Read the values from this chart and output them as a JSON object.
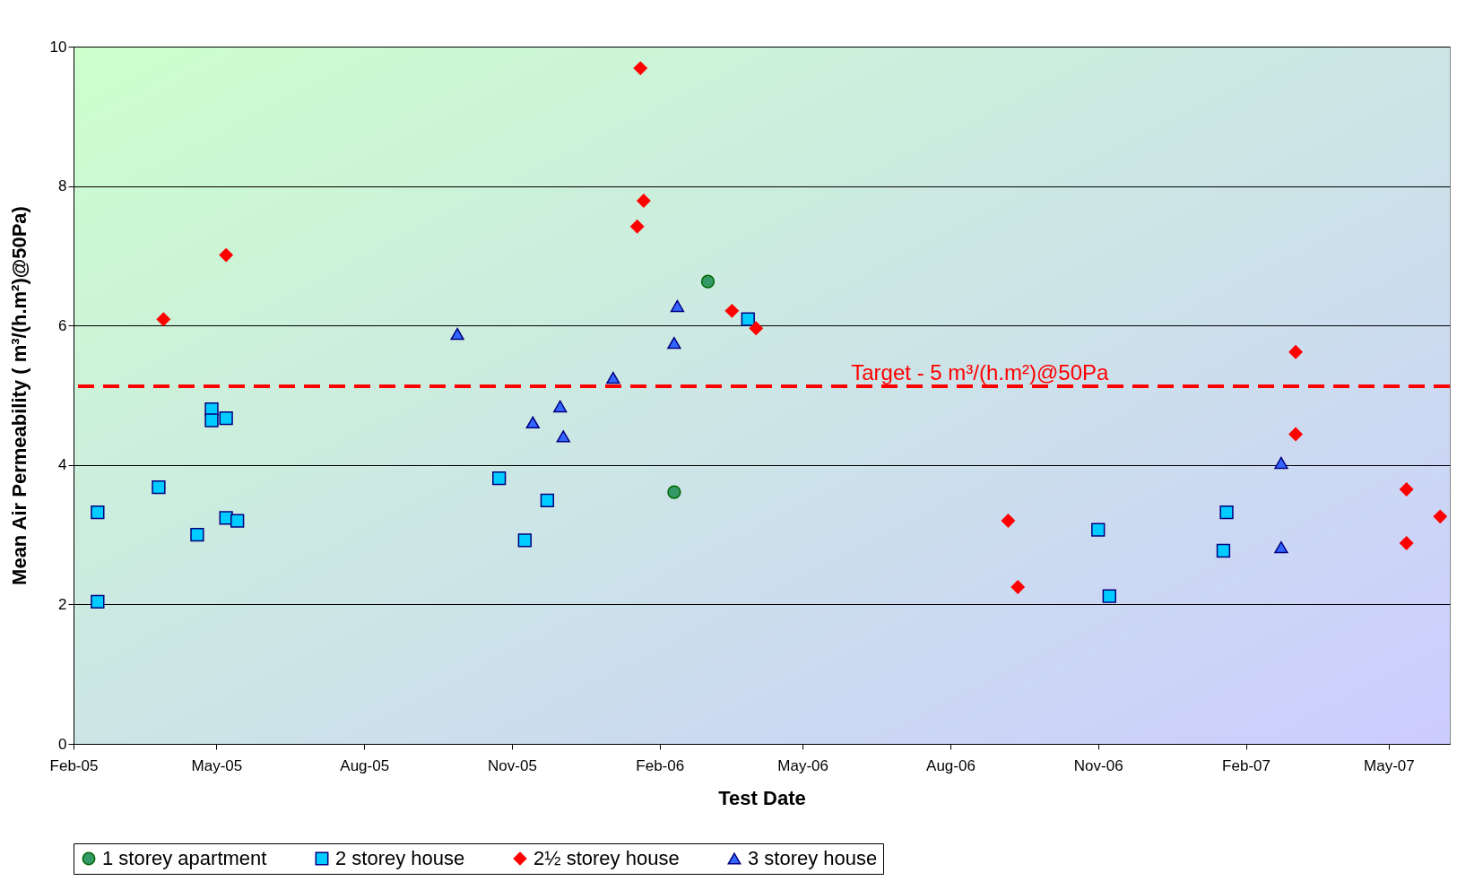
{
  "chart_data": {
    "type": "scatter",
    "xlabel": "Test Date",
    "ylabel": "Mean Air Permeability ( m³/(h.m²)@50Pa)",
    "xlim": [
      "2005-02-01",
      "2007-06-08"
    ],
    "ylim": [
      0,
      10
    ],
    "yticks": [
      0,
      2,
      4,
      6,
      8,
      10
    ],
    "xticks": [
      {
        "value": "2005-02-01",
        "label": "Feb-05"
      },
      {
        "value": "2005-05-01",
        "label": "May-05"
      },
      {
        "value": "2005-08-01",
        "label": "Aug-05"
      },
      {
        "value": "2005-11-01",
        "label": "Nov-05"
      },
      {
        "value": "2006-02-01",
        "label": "Feb-06"
      },
      {
        "value": "2006-05-01",
        "label": "May-06"
      },
      {
        "value": "2006-08-01",
        "label": "Aug-06"
      },
      {
        "value": "2006-11-01",
        "label": "Nov-06"
      },
      {
        "value": "2007-02-01",
        "label": "Feb-07"
      },
      {
        "value": "2007-05-01",
        "label": "May-07"
      }
    ],
    "grid": "y",
    "legend": "bottom",
    "series": [
      {
        "name": "1 storey apartment",
        "color": "#339966",
        "marker": "circle",
        "x": [
          "2006-03-03",
          "2006-02-10"
        ],
        "values": [
          6.63,
          3.61
        ]
      },
      {
        "name": "2 storey house",
        "color": "#00ccff",
        "marker": "square",
        "x": [
          "2005-02-16",
          "2005-02-16",
          "2005-03-26",
          "2005-04-19",
          "2005-04-28",
          "2005-04-28",
          "2005-05-07",
          "2005-05-07",
          "2005-05-14",
          "2005-10-24",
          "2005-11-09",
          "2005-11-23",
          "2006-03-28",
          "2006-11-01",
          "2006-11-08",
          "2007-01-18",
          "2007-01-20"
        ],
        "values": [
          3.32,
          2.04,
          3.68,
          3.0,
          4.8,
          4.64,
          4.67,
          3.24,
          3.2,
          3.81,
          2.92,
          3.49,
          6.09,
          3.07,
          2.12,
          2.77,
          3.32
        ]
      },
      {
        "name": "2½ storey house",
        "color": "#ff0000",
        "marker": "diamond",
        "x": [
          "2005-03-29",
          "2005-05-07",
          "2006-01-20",
          "2006-01-22",
          "2006-01-18",
          "2006-03-18",
          "2006-04-02",
          "2006-09-06",
          "2006-09-12",
          "2007-03-04",
          "2007-03-04",
          "2007-05-12",
          "2007-05-12",
          "2007-06-02"
        ],
        "values": [
          6.09,
          7.01,
          9.69,
          7.79,
          7.42,
          6.21,
          5.96,
          3.2,
          2.25,
          5.62,
          4.44,
          3.65,
          2.88,
          3.26
        ]
      },
      {
        "name": "3 storey house",
        "color": "#3366ff",
        "marker": "triangle",
        "x": [
          "2005-09-28",
          "2005-11-14",
          "2005-12-01",
          "2005-12-03",
          "2006-01-03",
          "2006-02-10",
          "2006-02-12",
          "2007-02-23",
          "2007-02-23"
        ],
        "values": [
          5.88,
          4.61,
          4.84,
          4.41,
          5.25,
          5.75,
          6.28,
          4.03,
          2.82
        ]
      }
    ],
    "ref_lines": [
      {
        "axis": "y",
        "value": 5.13,
        "label": "Target - 5 m³/(h.m²)@50Pa",
        "color": "#ff0000",
        "line_style": "dashed"
      }
    ]
  }
}
